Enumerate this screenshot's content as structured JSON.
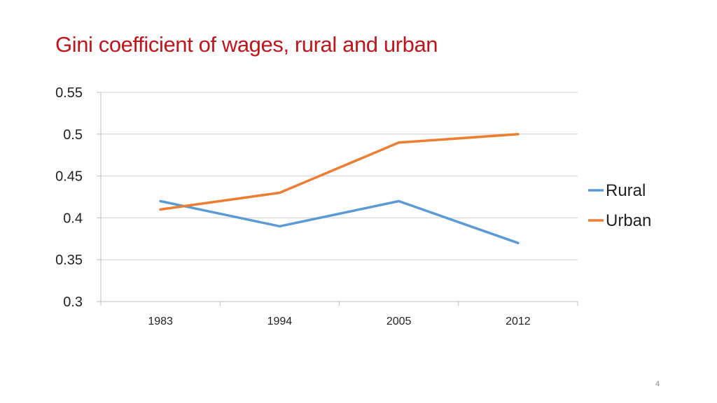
{
  "slide": {
    "title": "Gini coefficient of wages, rural and urban",
    "page_number": "4"
  },
  "chart_data": {
    "type": "line",
    "title": "",
    "xlabel": "",
    "ylabel": "",
    "categories": [
      "1983",
      "1994",
      "2005",
      "2012"
    ],
    "ylim": [
      0.3,
      0.55
    ],
    "yticks": [
      0.3,
      0.35,
      0.4,
      0.45,
      0.5,
      0.55
    ],
    "ytick_labels": [
      "0.3",
      "0.35",
      "0.4",
      "0.45",
      "0.5",
      "0.55"
    ],
    "grid": true,
    "legend_position": "right",
    "series": [
      {
        "name": "Rural",
        "color": "#5b9bd5",
        "values": [
          0.42,
          0.39,
          0.42,
          0.37
        ]
      },
      {
        "name": "Urban",
        "color": "#ed7d31",
        "values": [
          0.41,
          0.43,
          0.49,
          0.5
        ]
      }
    ]
  }
}
